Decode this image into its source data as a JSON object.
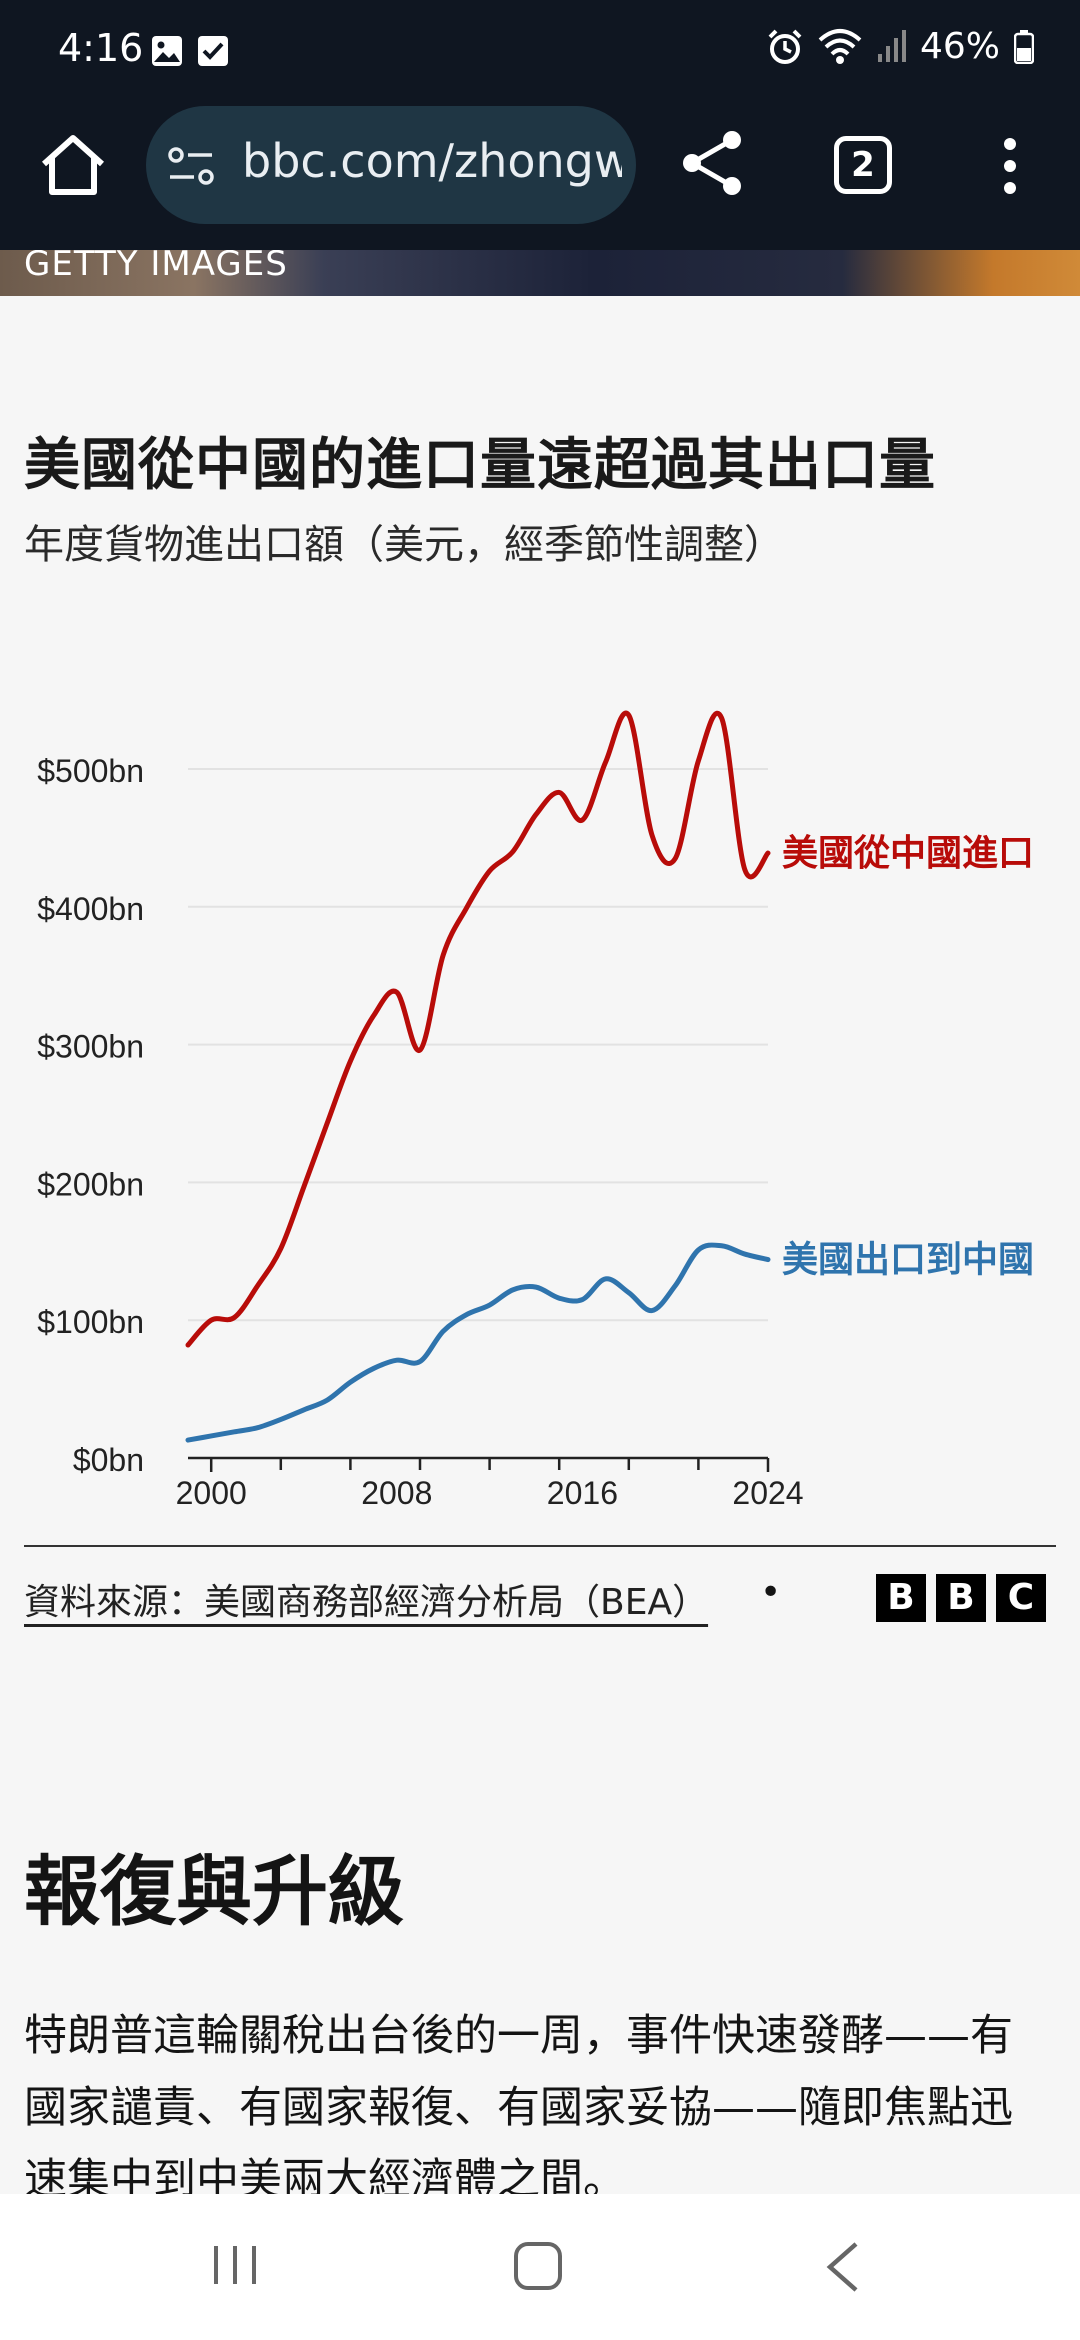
{
  "status_bar": {
    "time": "4:16",
    "battery": "46%"
  },
  "browser": {
    "url": "bbc.com/zhongw",
    "tab_count": "2"
  },
  "hero": {
    "credit": "GETTY IMAGES"
  },
  "chart": {
    "title": "美國從中國的進口量遠超過其出口量",
    "subtitle": "年度貨物進出口額（美元，經季節性調整）",
    "source": "資料來源：美國商務部經濟分析局（BEA）",
    "source_dot": "•",
    "logo_letters": [
      "B",
      "B",
      "C"
    ]
  },
  "chart_data": {
    "type": "line",
    "title": "美國從中國的進口量遠超過其出口量",
    "subtitle": "年度貨物進出口額（美元，經季節性調整）",
    "x_ticks": [
      "2000",
      "2008",
      "2016",
      "2024"
    ],
    "y_ticks": [
      "$0bn",
      "$100bn",
      "$200bn",
      "$300bn",
      "$400bn",
      "$500bn"
    ],
    "xlim": [
      1999,
      2024
    ],
    "ylim": [
      0,
      500
    ],
    "grid": true,
    "series": [
      {
        "name": "美國從中國進口",
        "color": "#b80c09",
        "x": [
          1999,
          2000,
          2001,
          2002,
          2003,
          2004,
          2005,
          2006,
          2007,
          2008,
          2009,
          2010,
          2011,
          2012,
          2013,
          2014,
          2015,
          2016,
          2017,
          2018,
          2019,
          2020,
          2021,
          2022,
          2023,
          2024
        ],
        "values": [
          82,
          100,
          102,
          125,
          152,
          197,
          243,
          288,
          321,
          338,
          296,
          365,
          399,
          426,
          440,
          467,
          483,
          463,
          505,
          539,
          452,
          435,
          506,
          537,
          427,
          439
        ]
      },
      {
        "name": "美國出口到中國",
        "color": "#2f74ad",
        "x": [
          1999,
          2000,
          2001,
          2002,
          2003,
          2004,
          2005,
          2006,
          2007,
          2008,
          2009,
          2010,
          2011,
          2012,
          2013,
          2014,
          2015,
          2016,
          2017,
          2018,
          2019,
          2020,
          2021,
          2022,
          2023,
          2024
        ],
        "values": [
          13,
          16,
          19,
          22,
          28,
          35,
          42,
          55,
          65,
          71,
          70,
          92,
          104,
          111,
          122,
          124,
          116,
          115,
          130,
          120,
          107,
          125,
          151,
          154,
          148,
          144
        ]
      }
    ]
  },
  "article": {
    "heading": "報復與升級",
    "paragraph": "特朗普這輪關稅出台後的一周，事件快速發酵——有國家譴責、有國家報復、有國家妥協——隨即焦點迅速集中到中美兩大經濟體之間。"
  },
  "icons": {
    "status": [
      "image-icon",
      "check-icon",
      "alarm-icon",
      "wifi-icon",
      "signal-icon",
      "battery-icon"
    ],
    "toolbar": [
      "home-icon",
      "site-info-icon",
      "share-icon",
      "more-icon"
    ],
    "nav": [
      "recent-apps-icon",
      "home-nav-icon",
      "back-icon"
    ]
  }
}
